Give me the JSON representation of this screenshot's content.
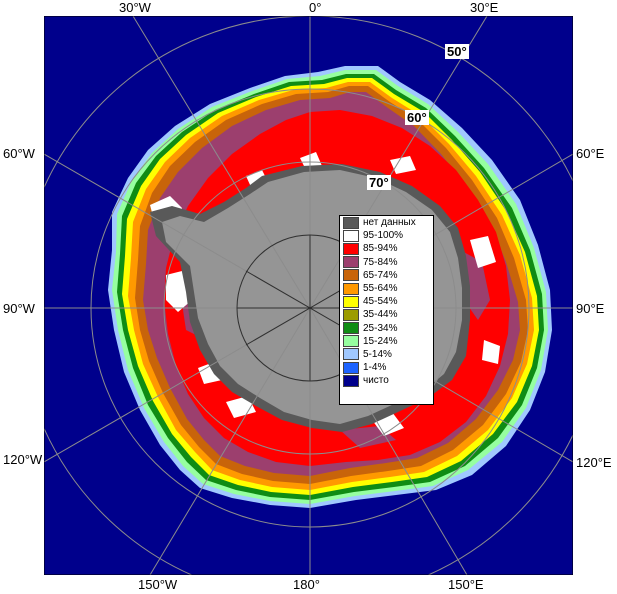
{
  "map": {
    "top_labels": [
      "30°W",
      "0°",
      "30°E"
    ],
    "bottom_labels": [
      "150°W",
      "180°",
      "150°E"
    ],
    "left_labels": [
      "60°W",
      "90°W",
      "120°W"
    ],
    "right_labels": [
      "60°E",
      "90°E",
      "120°E"
    ],
    "lat_labels": [
      "50°",
      "60°",
      "70°"
    ]
  },
  "legend": {
    "items": [
      {
        "label": "нет данных",
        "color": "#595959"
      },
      {
        "label": "95-100%",
        "color": "#ffffff"
      },
      {
        "label": "85-94%",
        "color": "#ff0000"
      },
      {
        "label": "75-84%",
        "color": "#9c3f6e"
      },
      {
        "label": "65-74%",
        "color": "#c8640a"
      },
      {
        "label": "55-64%",
        "color": "#ff9900"
      },
      {
        "label": "45-54%",
        "color": "#ffff00"
      },
      {
        "label": "35-44%",
        "color": "#9c9c00"
      },
      {
        "label": "25-34%",
        "color": "#0f8c14"
      },
      {
        "label": "15-24%",
        "color": "#96ffa0"
      },
      {
        "label": "5-14%",
        "color": "#a0c8ff"
      },
      {
        "label": "1-4%",
        "color": "#1e64ff"
      },
      {
        "label": "чисто",
        "color": "#00008c"
      }
    ]
  },
  "colors": {
    "ocean": "#00008c",
    "land": "#959595",
    "no_data": "#595959",
    "ice_white": "#ffffff",
    "ice_red": "#ff0000",
    "ice_purple": "#9c3f6e",
    "ice_brown": "#c8640a",
    "ice_orange": "#ff9900",
    "ice_yellow": "#ffff00",
    "ice_green": "#0f8c14",
    "ice_light_green": "#96ffa0",
    "ice_light_blue": "#a0c8ff"
  }
}
